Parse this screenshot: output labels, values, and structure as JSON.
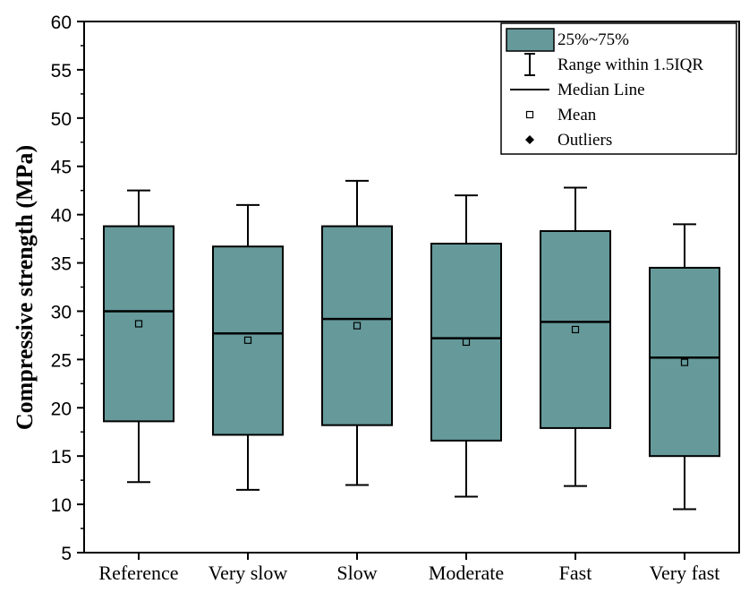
{
  "chart_data": {
    "type": "box",
    "title": "",
    "xlabel": "",
    "ylabel": "Compressive strength (MPa)",
    "ylim": [
      5,
      60
    ],
    "yticks": [
      5,
      10,
      15,
      20,
      25,
      30,
      35,
      40,
      45,
      50,
      55,
      60
    ],
    "categories": [
      "Reference",
      "Very slow",
      "Slow",
      "Moderate",
      "Fast",
      "Very fast"
    ],
    "boxes": [
      {
        "category": "Reference",
        "whisker_low": 12.3,
        "q1": 18.6,
        "median": 30.0,
        "q3": 38.8,
        "whisker_high": 42.5,
        "mean": 28.7
      },
      {
        "category": "Very slow",
        "whisker_low": 11.5,
        "q1": 17.2,
        "median": 27.7,
        "q3": 36.7,
        "whisker_high": 41.0,
        "mean": 27.0
      },
      {
        "category": "Slow",
        "whisker_low": 12.0,
        "q1": 18.2,
        "median": 29.2,
        "q3": 38.8,
        "whisker_high": 43.5,
        "mean": 28.5
      },
      {
        "category": "Moderate",
        "whisker_low": 10.8,
        "q1": 16.6,
        "median": 27.2,
        "q3": 37.0,
        "whisker_high": 42.0,
        "mean": 26.8
      },
      {
        "category": "Fast",
        "whisker_low": 11.9,
        "q1": 17.9,
        "median": 28.9,
        "q3": 38.3,
        "whisker_high": 42.8,
        "mean": 28.1
      },
      {
        "category": "Very fast",
        "whisker_low": 9.5,
        "q1": 15.0,
        "median": 25.2,
        "q3": 34.5,
        "whisker_high": 39.0,
        "mean": 24.7
      }
    ],
    "box_color": "#65999a",
    "legend": {
      "position": "top-right",
      "items": [
        {
          "key": "box",
          "label": "25%~75%"
        },
        {
          "key": "range",
          "label": "Range within 1.5IQR"
        },
        {
          "key": "median",
          "label": "Median Line"
        },
        {
          "key": "mean",
          "label": "Mean"
        },
        {
          "key": "outliers",
          "label": "Outliers"
        }
      ]
    }
  }
}
